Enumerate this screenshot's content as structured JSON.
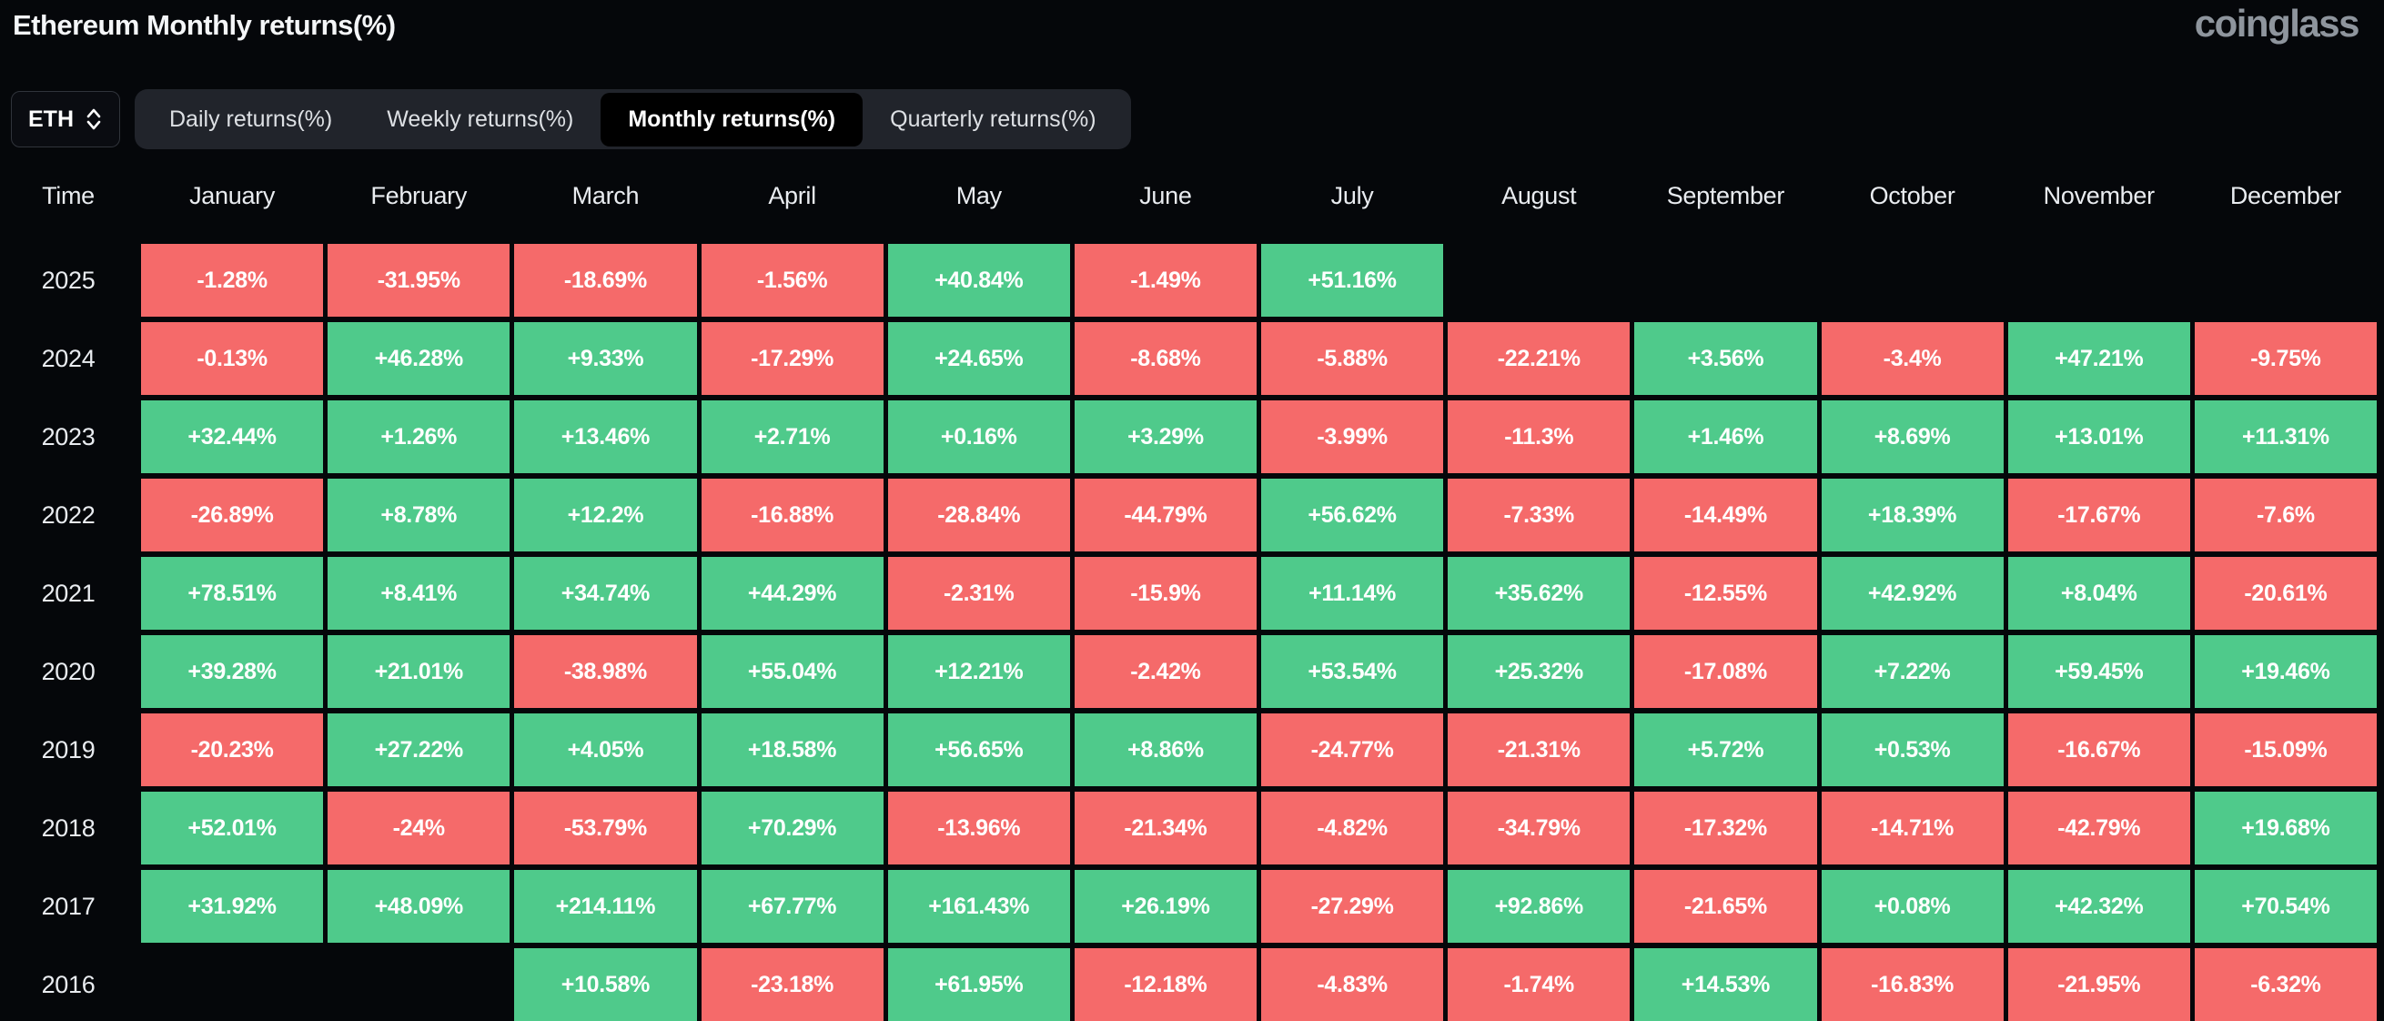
{
  "page": {
    "title": "Ethereum Monthly returns(%)",
    "brand": "coinglass"
  },
  "controls": {
    "symbol": "ETH",
    "tabs": [
      {
        "label": "Daily returns(%)",
        "active": false
      },
      {
        "label": "Weekly returns(%)",
        "active": false
      },
      {
        "label": "Monthly returns(%)",
        "active": true
      },
      {
        "label": "Quarterly returns(%)",
        "active": false
      }
    ]
  },
  "table": {
    "time_header": "Time",
    "month_headers": [
      "January",
      "February",
      "March",
      "April",
      "May",
      "June",
      "July",
      "August",
      "September",
      "October",
      "November",
      "December"
    ],
    "rows": [
      {
        "year": "2025",
        "values": [
          "-1.28%",
          "-31.95%",
          "-18.69%",
          "-1.56%",
          "+40.84%",
          "-1.49%",
          "+51.16%",
          "",
          "",
          "",
          "",
          ""
        ]
      },
      {
        "year": "2024",
        "values": [
          "-0.13%",
          "+46.28%",
          "+9.33%",
          "-17.29%",
          "+24.65%",
          "-8.68%",
          "-5.88%",
          "-22.21%",
          "+3.56%",
          "-3.4%",
          "+47.21%",
          "-9.75%"
        ]
      },
      {
        "year": "2023",
        "values": [
          "+32.44%",
          "+1.26%",
          "+13.46%",
          "+2.71%",
          "+0.16%",
          "+3.29%",
          "-3.99%",
          "-11.3%",
          "+1.46%",
          "+8.69%",
          "+13.01%",
          "+11.31%"
        ]
      },
      {
        "year": "2022",
        "values": [
          "-26.89%",
          "+8.78%",
          "+12.2%",
          "-16.88%",
          "-28.84%",
          "-44.79%",
          "+56.62%",
          "-7.33%",
          "-14.49%",
          "+18.39%",
          "-17.67%",
          "-7.6%"
        ]
      },
      {
        "year": "2021",
        "values": [
          "+78.51%",
          "+8.41%",
          "+34.74%",
          "+44.29%",
          "-2.31%",
          "-15.9%",
          "+11.14%",
          "+35.62%",
          "-12.55%",
          "+42.92%",
          "+8.04%",
          "-20.61%"
        ]
      },
      {
        "year": "2020",
        "values": [
          "+39.28%",
          "+21.01%",
          "-38.98%",
          "+55.04%",
          "+12.21%",
          "-2.42%",
          "+53.54%",
          "+25.32%",
          "-17.08%",
          "+7.22%",
          "+59.45%",
          "+19.46%"
        ]
      },
      {
        "year": "2019",
        "values": [
          "-20.23%",
          "+27.22%",
          "+4.05%",
          "+18.58%",
          "+56.65%",
          "+8.86%",
          "-24.77%",
          "-21.31%",
          "+5.72%",
          "+0.53%",
          "-16.67%",
          "-15.09%"
        ]
      },
      {
        "year": "2018",
        "values": [
          "+52.01%",
          "-24%",
          "-53.79%",
          "+70.29%",
          "-13.96%",
          "-21.34%",
          "-4.82%",
          "-34.79%",
          "-17.32%",
          "-14.71%",
          "-42.79%",
          "+19.68%"
        ]
      },
      {
        "year": "2017",
        "values": [
          "+31.92%",
          "+48.09%",
          "+214.11%",
          "+67.77%",
          "+161.43%",
          "+26.19%",
          "-27.29%",
          "+92.86%",
          "-21.65%",
          "+0.08%",
          "+42.32%",
          "+70.54%"
        ]
      },
      {
        "year": "2016",
        "values": [
          "",
          "",
          "+10.58%",
          "-23.18%",
          "+61.95%",
          "-12.18%",
          "-4.83%",
          "-1.74%",
          "+14.53%",
          "-16.83%",
          "-21.95%",
          "-6.32%"
        ]
      }
    ]
  },
  "colors": {
    "background": "#05070a",
    "positive": "#4fca8b",
    "negative": "#f56a6a",
    "tabbar_bg": "#21242b",
    "active_tab_bg": "#000000",
    "text": "#eef0f3"
  },
  "chart_data": {
    "type": "heatmap",
    "title": "Ethereum Monthly returns(%)",
    "x": [
      "January",
      "February",
      "March",
      "April",
      "May",
      "June",
      "July",
      "August",
      "September",
      "October",
      "November",
      "December"
    ],
    "y": [
      "2025",
      "2024",
      "2023",
      "2022",
      "2021",
      "2020",
      "2019",
      "2018",
      "2017",
      "2016"
    ],
    "values": [
      [
        -1.28,
        -31.95,
        -18.69,
        -1.56,
        40.84,
        -1.49,
        51.16,
        null,
        null,
        null,
        null,
        null
      ],
      [
        -0.13,
        46.28,
        9.33,
        -17.29,
        24.65,
        -8.68,
        -5.88,
        -22.21,
        3.56,
        -3.4,
        47.21,
        -9.75
      ],
      [
        32.44,
        1.26,
        13.46,
        2.71,
        0.16,
        3.29,
        -3.99,
        -11.3,
        1.46,
        8.69,
        13.01,
        11.31
      ],
      [
        -26.89,
        8.78,
        12.2,
        -16.88,
        -28.84,
        -44.79,
        56.62,
        -7.33,
        -14.49,
        18.39,
        -17.67,
        -7.6
      ],
      [
        78.51,
        8.41,
        34.74,
        44.29,
        -2.31,
        -15.9,
        11.14,
        35.62,
        -12.55,
        42.92,
        8.04,
        -20.61
      ],
      [
        39.28,
        21.01,
        -38.98,
        55.04,
        12.21,
        -2.42,
        53.54,
        25.32,
        -17.08,
        7.22,
        59.45,
        19.46
      ],
      [
        -20.23,
        27.22,
        4.05,
        18.58,
        56.65,
        8.86,
        -24.77,
        -21.31,
        5.72,
        0.53,
        -16.67,
        -15.09
      ],
      [
        52.01,
        -24,
        -53.79,
        70.29,
        -13.96,
        -21.34,
        -4.82,
        -34.79,
        -17.32,
        -14.71,
        -42.79,
        19.68
      ],
      [
        31.92,
        48.09,
        214.11,
        67.77,
        161.43,
        26.19,
        -27.29,
        92.86,
        -21.65,
        0.08,
        42.32,
        70.54
      ],
      [
        null,
        null,
        10.58,
        -23.18,
        61.95,
        -12.18,
        -4.83,
        -1.74,
        14.53,
        -16.83,
        -21.95,
        -6.32
      ]
    ],
    "value_unit": "%",
    "color_rule": "green if positive, red if negative",
    "legend_position": "none"
  }
}
